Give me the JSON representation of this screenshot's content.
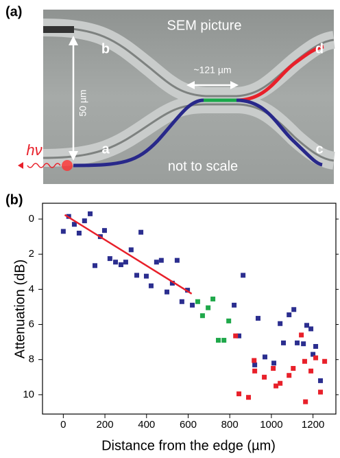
{
  "panel_a": {
    "label": "(a)",
    "title": "SEM picture",
    "note": "not to scale",
    "port_a": "a",
    "port_b": "b",
    "port_c": "c",
    "port_d": "d",
    "height_label": "50 µm",
    "length_label": "~121 µm",
    "light_label": "hν"
  },
  "chart_data": {
    "type": "scatter",
    "panel_label": "(b)",
    "y_label": "Attenuation (dB)",
    "x_label": "Distance from the edge (µm)",
    "xlim": [
      -100,
      1310
    ],
    "xticks": [
      0,
      200,
      400,
      600,
      800,
      1000,
      1200
    ],
    "ylim": [
      -0.9,
      11.1
    ],
    "yticks": [
      0,
      2,
      4,
      6,
      8,
      10
    ],
    "y_inverted": true,
    "grid": false,
    "series": [
      {
        "color": "#2b2e8f",
        "marker": "square",
        "x": [
          0,
          26,
          53,
          76,
          102,
          129,
          152,
          178,
          198,
          224,
          251,
          277,
          300,
          326,
          353,
          373,
          399,
          422,
          448,
          471,
          498,
          524,
          547,
          570,
          597,
          620,
          821,
          844,
          864,
          920,
          936,
          969,
          1012,
          1042,
          1058,
          1085,
          1108,
          1124,
          1154,
          1170,
          1190,
          1200,
          1213,
          1236
        ],
        "values": [
          0.7,
          -0.15,
          0.3,
          0.8,
          0.1,
          -0.3,
          2.65,
          1.0,
          0.65,
          2.25,
          2.45,
          2.6,
          2.45,
          1.75,
          3.2,
          0.75,
          3.25,
          3.8,
          2.45,
          2.35,
          4.15,
          3.65,
          2.35,
          4.7,
          4.05,
          4.9,
          4.9,
          6.65,
          3.2,
          8.3,
          5.65,
          7.85,
          8.2,
          5.95,
          7.05,
          5.45,
          5.15,
          7.05,
          7.1,
          6.05,
          6.25,
          7.7,
          7.25,
          9.2
        ]
      },
      {
        "color": "#1fa84a",
        "marker": "square",
        "x": [
          646,
          669,
          696,
          719,
          745,
          772,
          795
        ],
        "values": [
          4.7,
          5.5,
          5.05,
          4.55,
          6.9,
          6.9,
          5.8
        ]
      },
      {
        "color": "#e8202a",
        "marker": "square",
        "x": [
          828,
          844,
          890,
          917,
          920,
          966,
          1009,
          1022,
          1042,
          1085,
          1105,
          1144,
          1160,
          1164,
          1190,
          1213,
          1236,
          1256
        ],
        "values": [
          6.65,
          9.95,
          10.15,
          8.05,
          8.65,
          9.0,
          8.5,
          9.5,
          9.35,
          8.9,
          8.5,
          6.6,
          8.1,
          10.4,
          8.65,
          7.9,
          9.85,
          8.1
        ]
      },
      {
        "color": "#e8202a",
        "marker": "line",
        "x": [
          7,
          617
        ],
        "values": [
          -0.24,
          4.25
        ]
      }
    ]
  }
}
